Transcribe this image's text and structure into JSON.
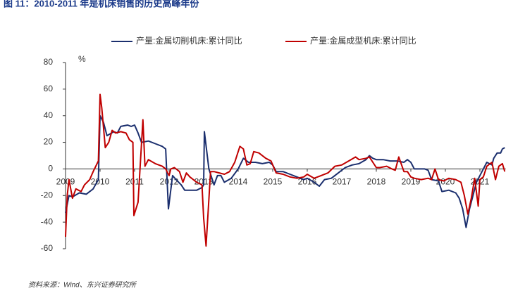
{
  "chart_data": {
    "type": "line",
    "title": "图 11：2010-2011 年是机床销售的历史高峰年份",
    "y_unit": "%",
    "source": "资料来源：Wind、东兴证券研究所",
    "xlim": [
      2009,
      2021.75
    ],
    "xticks": [
      2009,
      2010,
      2011,
      2012,
      2013,
      2014,
      2015,
      2016,
      2017,
      2018,
      2019,
      2020,
      2021
    ],
    "ylim": [
      -60,
      80
    ],
    "yticks": [
      80,
      60,
      40,
      20,
      0,
      -20,
      -40,
      -60
    ],
    "series": [
      {
        "name": "产量:金属切削机床:累计同比",
        "color": "#1b2f6e",
        "x": [
          2009.0,
          2009.1,
          2009.2,
          2009.4,
          2009.6,
          2009.8,
          2009.95,
          2010.0,
          2010.1,
          2010.2,
          2010.4,
          2010.5,
          2010.6,
          2010.8,
          2010.9,
          2011.0,
          2011.1,
          2011.2,
          2011.4,
          2011.6,
          2011.8,
          2011.9,
          2011.98,
          2012.1,
          2012.2,
          2012.35,
          2012.45,
          2012.6,
          2012.8,
          2012.95,
          2013.0,
          2013.02,
          2013.15,
          2013.3,
          2013.4,
          2013.5,
          2013.6,
          2013.8,
          2014.0,
          2014.15,
          2014.3,
          2014.5,
          2014.7,
          2014.9,
          2015.0,
          2015.1,
          2015.3,
          2015.5,
          2015.7,
          2015.9,
          2016.0,
          2016.2,
          2016.35,
          2016.5,
          2016.7,
          2016.9,
          2017.1,
          2017.3,
          2017.5,
          2017.7,
          2017.8,
          2017.9,
          2018.0,
          2018.2,
          2018.4,
          2018.6,
          2018.8,
          2018.9,
          2019.0,
          2019.1,
          2019.4,
          2019.5,
          2019.6,
          2019.8,
          2019.9,
          2020.1,
          2020.3,
          2020.4,
          2020.5,
          2020.6,
          2020.7,
          2020.8,
          2020.9,
          2021.0,
          2021.1,
          2021.2,
          2021.35,
          2021.4,
          2021.5,
          2021.6,
          2021.65,
          2021.72
        ],
        "values": [
          -33,
          -20,
          -21,
          -18,
          -19,
          -15,
          -8,
          40,
          35,
          25,
          28,
          27,
          32,
          33,
          32,
          33,
          27,
          20,
          21,
          19,
          17,
          15,
          -30,
          -5,
          -8,
          -12,
          -16,
          -16,
          -16,
          -14,
          -12,
          28,
          0,
          -12,
          -5,
          -5,
          -10,
          -7,
          0,
          8,
          5,
          5,
          4,
          5,
          3,
          -2,
          -2,
          -4,
          -6,
          -8,
          -7,
          -10,
          -13,
          -8,
          -7,
          -3,
          1,
          3,
          4,
          7,
          10,
          8,
          7,
          7,
          6,
          6,
          5,
          7,
          5,
          0,
          0,
          -1,
          -8,
          -9,
          -17,
          -16,
          -18,
          -22,
          -30,
          -44,
          -30,
          -20,
          -10,
          -5,
          0,
          5,
          3,
          8,
          12,
          12,
          15,
          16
        ]
      },
      {
        "name": "产量:金属成型机床:累计同比",
        "color": "#c00000",
        "x": [
          2009.0,
          2009.05,
          2009.1,
          2009.2,
          2009.3,
          2009.45,
          2009.55,
          2009.7,
          2009.8,
          2009.95,
          2010.0,
          2010.05,
          2010.15,
          2010.25,
          2010.35,
          2010.45,
          2010.6,
          2010.75,
          2010.85,
          2010.95,
          2010.98,
          2011.1,
          2011.24,
          2011.3,
          2011.4,
          2011.6,
          2011.8,
          2011.9,
          2012.0,
          2012.05,
          2012.15,
          2012.3,
          2012.4,
          2012.5,
          2012.6,
          2012.8,
          2012.95,
          2013.0,
          2013.07,
          2013.2,
          2013.3,
          2013.45,
          2013.6,
          2013.75,
          2013.9,
          2014.05,
          2014.15,
          2014.25,
          2014.35,
          2014.45,
          2014.6,
          2014.8,
          2014.95,
          2015.0,
          2015.1,
          2015.3,
          2015.5,
          2015.7,
          2015.9,
          2016.0,
          2016.2,
          2016.4,
          2016.6,
          2016.8,
          2017.0,
          2017.2,
          2017.4,
          2017.5,
          2017.7,
          2017.8,
          2018.0,
          2018.1,
          2018.3,
          2018.45,
          2018.55,
          2018.65,
          2018.8,
          2018.9,
          2019.0,
          2019.1,
          2019.3,
          2019.5,
          2019.6,
          2019.7,
          2019.8,
          2019.95,
          2020.1,
          2020.3,
          2020.45,
          2020.55,
          2020.65,
          2020.75,
          2020.85,
          2020.95,
          2021.0,
          2021.1,
          2021.2,
          2021.35,
          2021.45,
          2021.55,
          2021.65,
          2021.72
        ],
        "values": [
          -51,
          -20,
          -8,
          -22,
          -15,
          -17,
          -12,
          -8,
          -2,
          6,
          56,
          46,
          16,
          20,
          29,
          27,
          28,
          27,
          22,
          20,
          -35,
          -25,
          37,
          2,
          7,
          4,
          2,
          0,
          -5,
          0,
          1,
          -2,
          -10,
          -3,
          -6,
          -10,
          -12,
          -37,
          -58,
          -2,
          -2,
          -3,
          -4,
          -2,
          5,
          17,
          15,
          3,
          4,
          13,
          12,
          8,
          6,
          3,
          -3,
          -4,
          -6,
          -7,
          -6,
          -4,
          -7,
          -5,
          -3,
          2,
          3,
          6,
          9,
          7,
          8,
          9,
          1,
          1,
          2,
          0,
          -1,
          9,
          -2,
          -2,
          -6,
          -7,
          -8,
          -7,
          -8,
          0,
          -8,
          -9,
          -7,
          -8,
          -10,
          -20,
          -34,
          -22,
          -7,
          -28,
          -8,
          -6,
          2,
          5,
          -8,
          2,
          4,
          -2
        ]
      }
    ]
  }
}
